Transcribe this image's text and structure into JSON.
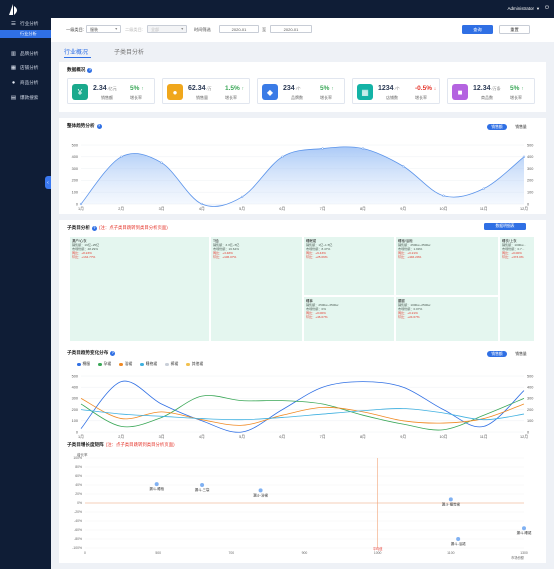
{
  "sidebar": {
    "items": [
      {
        "label": "行业分析",
        "icon": "list-icon"
      },
      {
        "label": "行业分析",
        "icon": "list-icon"
      },
      {
        "label": "品牌分析",
        "icon": "bar-chart-icon"
      },
      {
        "label": "店铺分析",
        "icon": "grid-icon"
      },
      {
        "label": "商品分析",
        "icon": "user-icon"
      },
      {
        "label": "爆款搜索",
        "icon": "chart-icon"
      }
    ]
  },
  "header": {
    "user": "Administrator",
    "caret": "▼",
    "power_icon": "⏻"
  },
  "filters": {
    "cat1_label": "一级类目:",
    "cat1_value": "服装",
    "cat2_label": "二级类目:",
    "cat2_value": "全部",
    "time_label": "时间筛选",
    "start_date": "2020-01",
    "sep": "至",
    "end_date": "2020-01",
    "search_btn": "查询",
    "reset_btn": "重置"
  },
  "tabs": [
    {
      "label": "行业概况"
    },
    {
      "label": "子类目分析"
    }
  ],
  "overview": {
    "title": "数据概况",
    "metrics": [
      {
        "value": "2.34",
        "unit": "/亿元",
        "label": "销售额",
        "pct": "5%",
        "arrow": "↑",
        "pct_label": "增长率",
        "color": "#1aa98c",
        "icon": "money-icon",
        "glyph": "¥"
      },
      {
        "value": "62.34",
        "unit": "/万",
        "label": "销售量",
        "pct": "1.5%",
        "arrow": "↑",
        "pct_label": "增长率",
        "color": "#f0a71c",
        "icon": "coin-icon",
        "glyph": "●"
      },
      {
        "value": "234",
        "unit": "/个",
        "label": "品牌数",
        "pct": "5%",
        "arrow": "↑",
        "pct_label": "增长率",
        "color": "#3a7be6",
        "icon": "tag-icon",
        "glyph": "◆"
      },
      {
        "value": "1234",
        "unit": "/个",
        "label": "店铺数",
        "pct": "-0.5%",
        "arrow": "↓",
        "pct_label": "增长率",
        "color": "#14b3a6",
        "icon": "store-icon",
        "glyph": "▦"
      },
      {
        "value": "12.34",
        "unit": "/万条",
        "label": "商品数",
        "pct": "5%",
        "arrow": "↑",
        "pct_label": "增长率",
        "color": "#b463e0",
        "icon": "bag-icon",
        "glyph": "■"
      }
    ]
  },
  "trend": {
    "title": "整体趋势分析",
    "toggle_on": "销售额",
    "toggle_off": "销售量"
  },
  "subcat": {
    "title": "子类目分析",
    "hint": "(注：点子类目跳转到类目分析页面)",
    "button": "数据明细表",
    "cells": [
      {
        "name": "漏户/心衣",
        "l1": "销售额：19亿~25亿",
        "l2": "市场份额：48.29%",
        "l3": "同比：+8.23%",
        "l4": "环比：+134.77%"
      },
      {
        "name": "T恤",
        "l1": "销售额：3.3亿~5亿",
        "l2": "市场份额：16.64%",
        "l3": "同比：+3.48%",
        "l4": "环比：+106.07%"
      },
      {
        "name": "睡眠裙",
        "l1": "销售额：1亿~1.5亿",
        "l2": "市场份额：8.47%",
        "l3": "同比：+9.43%",
        "l4": "环比：+25.06%"
      },
      {
        "name": "睡袍/浴袍",
        "l1": "销售额：2500w~3500w",
        "l2": "市场份额：1.99%",
        "l3": "同比：+0.21%",
        "l4": "环比：+446.20%"
      },
      {
        "name": "睡衣/上衣",
        "l1": "销售额：1000w...",
        "l2": "市场份额：0.7...",
        "l3": "同比：+0.00%",
        "l4": "环比：+373.0%"
      },
      {
        "name": "睡裤",
        "l1": "销售额：2500w~3500w",
        "l2": "市场份额：0%",
        "l3": "同比：+0.00%",
        "l4": "环比：+46.07%"
      },
      {
        "name": "腰腿",
        "l1": "销售额：1000w~2500w",
        "l2": "市场份额：0.07%",
        "l3": "同比：+0.21%",
        "l4": "环比：+24.67%"
      }
    ]
  },
  "subtrend": {
    "title": "子类目趋势变化分布",
    "toggle_on": "销售额",
    "toggle_off": "销售量",
    "legend": [
      {
        "name": "棉服",
        "color": "#2f6fe4"
      },
      {
        "name": "孕裙",
        "color": "#3aa757"
      },
      {
        "name": "浴裙",
        "color": "#f08a24"
      },
      {
        "name": "睡袍裙",
        "color": "#3fb0e0"
      },
      {
        "name": "裤裙",
        "color": "#c9cfd8"
      },
      {
        "name": "其他裙",
        "color": "#f2c14e"
      }
    ]
  },
  "matrix": {
    "title": "子类目增长度矩阵",
    "hint": "(注：点子类目跳转到类目分析页面)",
    "ylabel": "增长率",
    "xlabel": "市场份额",
    "avg_label": "平均值",
    "yticks": [
      "100%",
      "80%",
      "60%",
      "40%",
      "20%",
      "0%",
      "-20%",
      "-40%",
      "-60%",
      "-80%",
      "-100%"
    ],
    "xticks": [
      "0",
      "500",
      "700",
      "900",
      "1000",
      "1100",
      "1300"
    ],
    "points": [
      {
        "label": "漏斗-睡袍"
      },
      {
        "label": "漏斗-三袋"
      },
      {
        "label": "漏斗-浴裙"
      },
      {
        "label": "漏斗-睡觉裙"
      },
      {
        "label": "漏斗-睡裙"
      },
      {
        "label": "漏斗-浴裙"
      }
    ]
  },
  "chart_data": [
    {
      "type": "area",
      "title": "整体趋势分析",
      "categories": [
        "1月",
        "2月",
        "3月",
        "4月",
        "5月",
        "6月",
        "7月",
        "8月",
        "9月",
        "10月",
        "11月",
        "12月"
      ],
      "ylim": [
        0,
        500
      ],
      "yticks": [
        0,
        100,
        200,
        300,
        400,
        500
      ],
      "series": [
        {
          "values": [
            0,
            400,
            350,
            0,
            60,
            400,
            470,
            470,
            320,
            70,
            130,
            400
          ]
        }
      ]
    },
    {
      "type": "line",
      "title": "子类目趋势变化分布",
      "categories": [
        "1月",
        "2月",
        "3月",
        "4月",
        "5月",
        "6月",
        "7月",
        "8月",
        "9月",
        "10月",
        "11月",
        "12月"
      ],
      "ylim": [
        0,
        500
      ],
      "yticks": [
        0,
        100,
        200,
        300,
        400,
        500
      ],
      "series": [
        {
          "name": "棉服",
          "color": "#2f6fe4",
          "values": [
            30,
            450,
            250,
            100,
            0,
            200,
            400,
            450,
            400,
            200,
            50,
            370
          ]
        },
        {
          "name": "孕裙",
          "color": "#3aa757",
          "values": [
            250,
            50,
            130,
            320,
            280,
            280,
            250,
            150,
            70,
            20,
            150,
            300
          ]
        },
        {
          "name": "浴裙",
          "color": "#f08a24",
          "values": [
            300,
            120,
            180,
            110,
            60,
            150,
            220,
            180,
            100,
            80,
            120,
            250
          ]
        },
        {
          "name": "睡袍裙",
          "color": "#3fb0e0",
          "values": [
            200,
            160,
            140,
            120,
            110,
            130,
            160,
            190,
            210,
            170,
            110,
            160
          ]
        }
      ]
    },
    {
      "type": "scatter",
      "title": "子类目增长度矩阵",
      "xlim": [
        0,
        1300
      ],
      "ylim": [
        -100,
        100
      ],
      "avg_x": 1000,
      "avg_y": 0,
      "points": [
        {
          "label": "漏斗-睡袍",
          "x": 490,
          "y": 42,
          "color": "#6aa3f0"
        },
        {
          "label": "漏斗-三袋",
          "x": 620,
          "y": 40,
          "color": "#6aa3f0"
        },
        {
          "label": "漏斗-浴裙",
          "x": 780,
          "y": 28,
          "color": "#6aa3f0"
        },
        {
          "label": "漏斗-睡觉裙",
          "x": 1100,
          "y": 8,
          "color": "#6aa3f0"
        },
        {
          "label": "漏斗-睡裙",
          "x": 1300,
          "y": -56,
          "color": "#6aa3f0"
        },
        {
          "label": "漏斗-浴裙",
          "x": 1120,
          "y": -80,
          "color": "#6aa3f0"
        }
      ]
    }
  ]
}
